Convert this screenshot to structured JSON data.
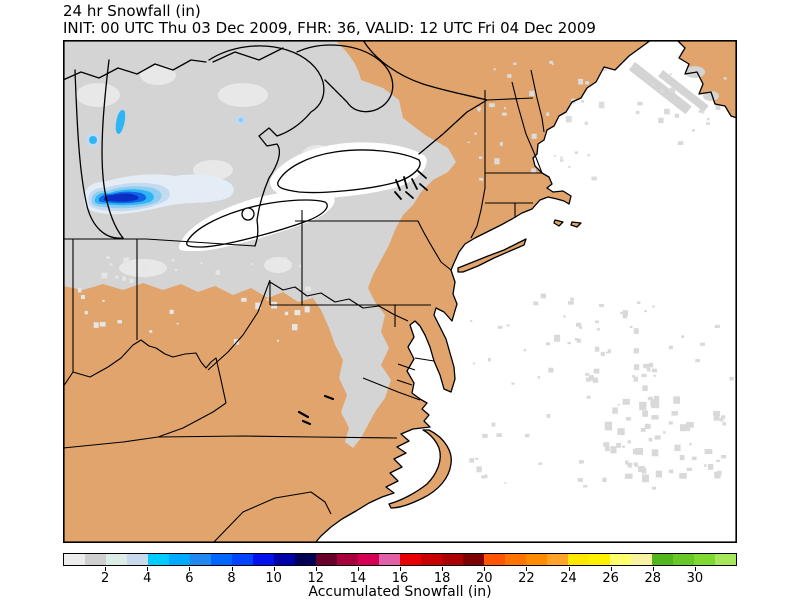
{
  "header": {
    "title": "24 hr Snowfall (in)",
    "subtitle": "INIT: 00 UTC Thu 03 Dec 2009, FHR: 36, VALID: 12 UTC Fri 04 Dec 2009"
  },
  "map": {
    "region": "Northeastern United States, Great Lakes and Mid-Atlantic",
    "colors": {
      "land": "#e0a46c",
      "ocean": "#ffffff",
      "frame": "#000000",
      "snow_trace": "#d4d4d4",
      "snow_trace_light": "#e8e8e8",
      "lake_unfrozen": "#ffffff",
      "speckle_ocean": "#d9d9d9",
      "speckle_land_ne": "#dcdcdc",
      "speckle_land_midwest": "#e6e6e6",
      "blob_levels": [
        "#e4ecf5",
        "#c3daf0",
        "#8ecdf2",
        "#2eb6f4",
        "#1163e8",
        "#0b2ec2"
      ]
    },
    "max_snowfall_feature": "Lake-effect snow maximum of roughly 10-12 in near southern Lake Michigan"
  },
  "colorbar": {
    "axis_label": "Accumulated Snowfall (in)",
    "value_min": 0,
    "value_max": 32,
    "tick_values": [
      2,
      4,
      6,
      8,
      10,
      12,
      14,
      16,
      18,
      20,
      22,
      24,
      26,
      28,
      30
    ],
    "tick_labels": [
      "2",
      "4",
      "6",
      "8",
      "10",
      "12",
      "14",
      "16",
      "18",
      "20",
      "22",
      "24",
      "26",
      "28",
      "30"
    ],
    "segment_colors": [
      "#ececec",
      "#cfcfcf",
      "#dcece6",
      "#c9daef",
      "#00ccff",
      "#00aaff",
      "#2288f0",
      "#0066ff",
      "#0044ff",
      "#0011ee",
      "#0000a8",
      "#000055",
      "#66002b",
      "#a8003c",
      "#d40055",
      "#e060aa",
      "#e80000",
      "#c80000",
      "#aa0000",
      "#7d0000",
      "#ff5500",
      "#ff7300",
      "#ff8c00",
      "#ffa428",
      "#ffe800",
      "#fff200",
      "#ffff6e",
      "#f8f2a2",
      "#52b41e",
      "#67c828",
      "#80d932",
      "#a6e85c"
    ]
  }
}
